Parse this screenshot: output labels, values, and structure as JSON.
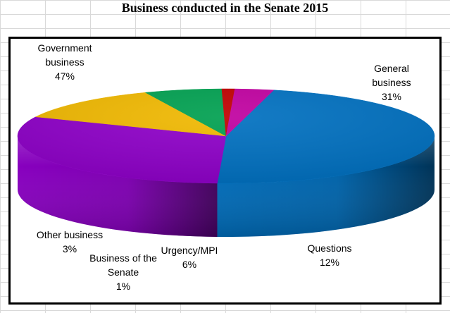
{
  "chart_data": {
    "type": "pie",
    "title": "Business conducted in the Senate 2015",
    "slices": [
      {
        "label": "Government business",
        "value": 47,
        "pct_label": "47%",
        "color": "#0070C0"
      },
      {
        "label": "General business",
        "value": 31,
        "pct_label": "31%",
        "color": "#8E00C8"
      },
      {
        "label": "Questions",
        "value": 12,
        "pct_label": "12%",
        "color": "#F0B800"
      },
      {
        "label": "Urgency/MPI",
        "value": 6,
        "pct_label": "6%",
        "color": "#00A050"
      },
      {
        "label": "Business of the Senate",
        "value": 1,
        "pct_label": "1%",
        "color": "#C00000"
      },
      {
        "label": "Other business",
        "value": 3,
        "pct_label": "3%",
        "color": "#C000A0"
      }
    ],
    "view": "3d-pie",
    "legend": "none",
    "data_labels": "outside"
  }
}
